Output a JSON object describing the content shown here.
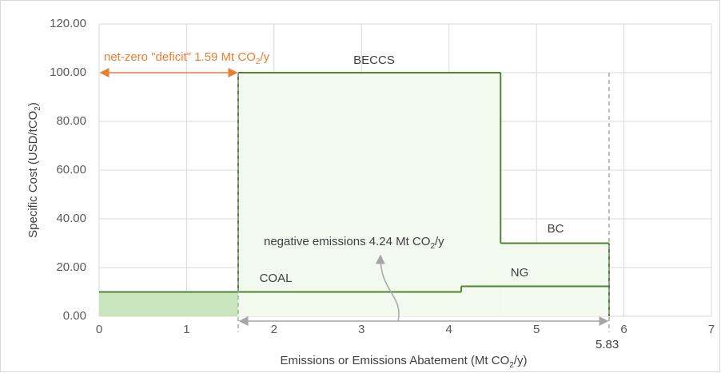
{
  "chart_data": {
    "type": "step",
    "xlim": [
      0,
      7
    ],
    "xticks": [
      0,
      1,
      2,
      3,
      4,
      5,
      6,
      7
    ],
    "ylim": [
      0,
      120
    ],
    "yticks": [
      {
        "value": 0,
        "label": "0.00"
      },
      {
        "value": 20,
        "label": "20.00"
      },
      {
        "value": 40,
        "label": "40.00"
      },
      {
        "value": 60,
        "label": "60.00"
      },
      {
        "value": 80,
        "label": "80.00"
      },
      {
        "value": 100,
        "label": "100.00"
      },
      {
        "value": 120,
        "label": "120.00"
      }
    ],
    "grid": true,
    "x_label": [
      "Emissions or Emissions Abatement (Mt CO",
      "2",
      "/y)"
    ],
    "y_label": [
      "Specific Cost (USD/tCO",
      "2",
      ")"
    ],
    "layers": [
      {
        "color": "#c9e5bd",
        "line_color": "#548235",
        "segments": [
          {
            "label": "COAL",
            "x": [
              0,
              4.14
            ],
            "value": 10
          },
          {
            "label": "NG",
            "x": [
              4.14,
              5.83
            ],
            "value": 12.3
          }
        ]
      },
      {
        "color": "#f2f9ee",
        "line_color": "#548235",
        "segments": [
          {
            "label": "BECCS",
            "x": [
              1.59,
              4.59
            ],
            "value": 100
          },
          {
            "label": "BC",
            "x": [
              4.59,
              5.83
            ],
            "value": 30
          }
        ]
      }
    ],
    "annotations": {
      "deficit": [
        "net-zero \"deficit\" 1.59 Mt CO",
        "2",
        "/y"
      ],
      "negative": [
        "negative emissions 4.24 Mt CO",
        "2",
        "/y"
      ],
      "end_label": "5.83"
    }
  }
}
